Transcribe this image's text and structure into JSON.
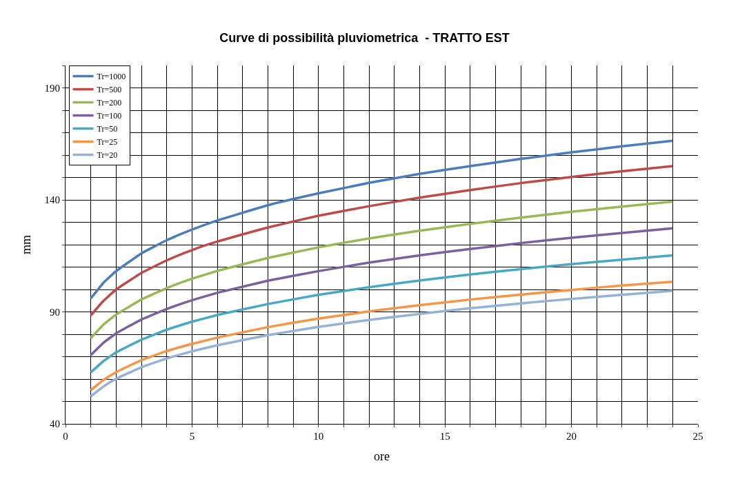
{
  "chart_data": {
    "type": "line",
    "title": "Curve di possibilità pluviometrica  - TRATTO EST",
    "xlabel": "ore",
    "ylabel": "mm",
    "x": [
      1,
      1.5,
      2,
      3,
      4,
      5,
      6,
      8,
      10,
      12,
      14,
      16,
      18,
      20,
      22,
      24
    ],
    "series": [
      {
        "name": "Tr=1000",
        "color": "#4a7ebb",
        "values": [
          96,
          103,
          108.2,
          116.1,
          122,
          126.7,
          130.8,
          137.6,
          142.9,
          147.6,
          151.6,
          155.1,
          158.3,
          161.2,
          163.9,
          166.4
        ]
      },
      {
        "name": "Tr=500",
        "color": "#be4b48",
        "values": [
          88.4,
          94.9,
          100,
          107.4,
          113,
          117.6,
          121.4,
          127.7,
          132.9,
          137.2,
          141,
          144.4,
          147.5,
          150.2,
          152.8,
          155.1
        ]
      },
      {
        "name": "Tr=200",
        "color": "#98b954",
        "values": [
          78.3,
          84.3,
          88.8,
          95.5,
          100.6,
          104.8,
          108.3,
          114.1,
          118.8,
          122.8,
          126.2,
          129.3,
          132.1,
          134.7,
          137,
          139.2
        ]
      },
      {
        "name": "Tr=100",
        "color": "#7d60a0",
        "values": [
          70.7,
          76.2,
          80.4,
          86.6,
          91.3,
          95.2,
          98.5,
          103.9,
          108.2,
          112,
          115.2,
          118.1,
          120.7,
          123.1,
          125.2,
          127.3
        ]
      },
      {
        "name": "Tr=50",
        "color": "#46aac5",
        "values": [
          63,
          68,
          71.9,
          77.6,
          82,
          85.6,
          88.6,
          93.5,
          97.6,
          101,
          104,
          106.7,
          109.1,
          111.3,
          113.3,
          115.2
        ]
      },
      {
        "name": "Tr=25",
        "color": "#f79646",
        "values": [
          55,
          59.6,
          63.1,
          68.4,
          72.5,
          75.7,
          78.5,
          83.2,
          87,
          90.2,
          93,
          95.5,
          97.7,
          99.8,
          101.8,
          103.5
        ]
      },
      {
        "name": "Tr=20",
        "color": "#95b3d7",
        "values": [
          52.3,
          56.7,
          60.1,
          65.3,
          69.2,
          72.4,
          75.1,
          79.6,
          83.3,
          86.4,
          89.1,
          91.6,
          93.8,
          95.8,
          97.6,
          99.4
        ]
      }
    ],
    "xlim": [
      0,
      25
    ],
    "xticks": [
      0,
      {
        "value": 1,
        "label": null
      },
      {
        "value": 2,
        "label": null
      },
      {
        "value": 3,
        "label": null
      },
      {
        "value": 4,
        "label": null
      },
      5,
      {
        "value": 6,
        "label": null
      },
      {
        "value": 7,
        "label": null
      },
      {
        "value": 8,
        "label": null
      },
      {
        "value": 9,
        "label": null
      },
      10,
      {
        "value": 11,
        "label": null
      },
      {
        "value": 12,
        "label": null
      },
      {
        "value": 13,
        "label": null
      },
      {
        "value": 14,
        "label": null
      },
      15,
      {
        "value": 16,
        "label": null
      },
      {
        "value": 17,
        "label": null
      },
      {
        "value": 18,
        "label": null
      },
      {
        "value": 19,
        "label": null
      },
      20,
      {
        "value": 21,
        "label": null
      },
      {
        "value": 22,
        "label": null
      },
      {
        "value": 23,
        "label": null
      },
      {
        "value": 24,
        "label": null
      },
      25
    ],
    "ylim": [
      40,
      200
    ],
    "yticks": [
      40,
      {
        "value": 50,
        "label": null
      },
      {
        "value": 60,
        "label": null
      },
      {
        "value": 70,
        "label": null
      },
      {
        "value": 80,
        "label": null
      },
      90,
      {
        "value": 100,
        "label": null
      },
      {
        "value": 110,
        "label": null
      },
      {
        "value": 120,
        "label": null
      },
      {
        "value": 130,
        "label": null
      },
      140,
      {
        "value": 150,
        "label": null
      },
      {
        "value": 160,
        "label": null
      },
      {
        "value": 170,
        "label": null
      },
      {
        "value": 180,
        "label": null
      },
      190,
      {
        "value": 200,
        "label": null
      }
    ],
    "grid": true,
    "legend": "top left",
    "marker": "none",
    "line_style": "solid"
  }
}
